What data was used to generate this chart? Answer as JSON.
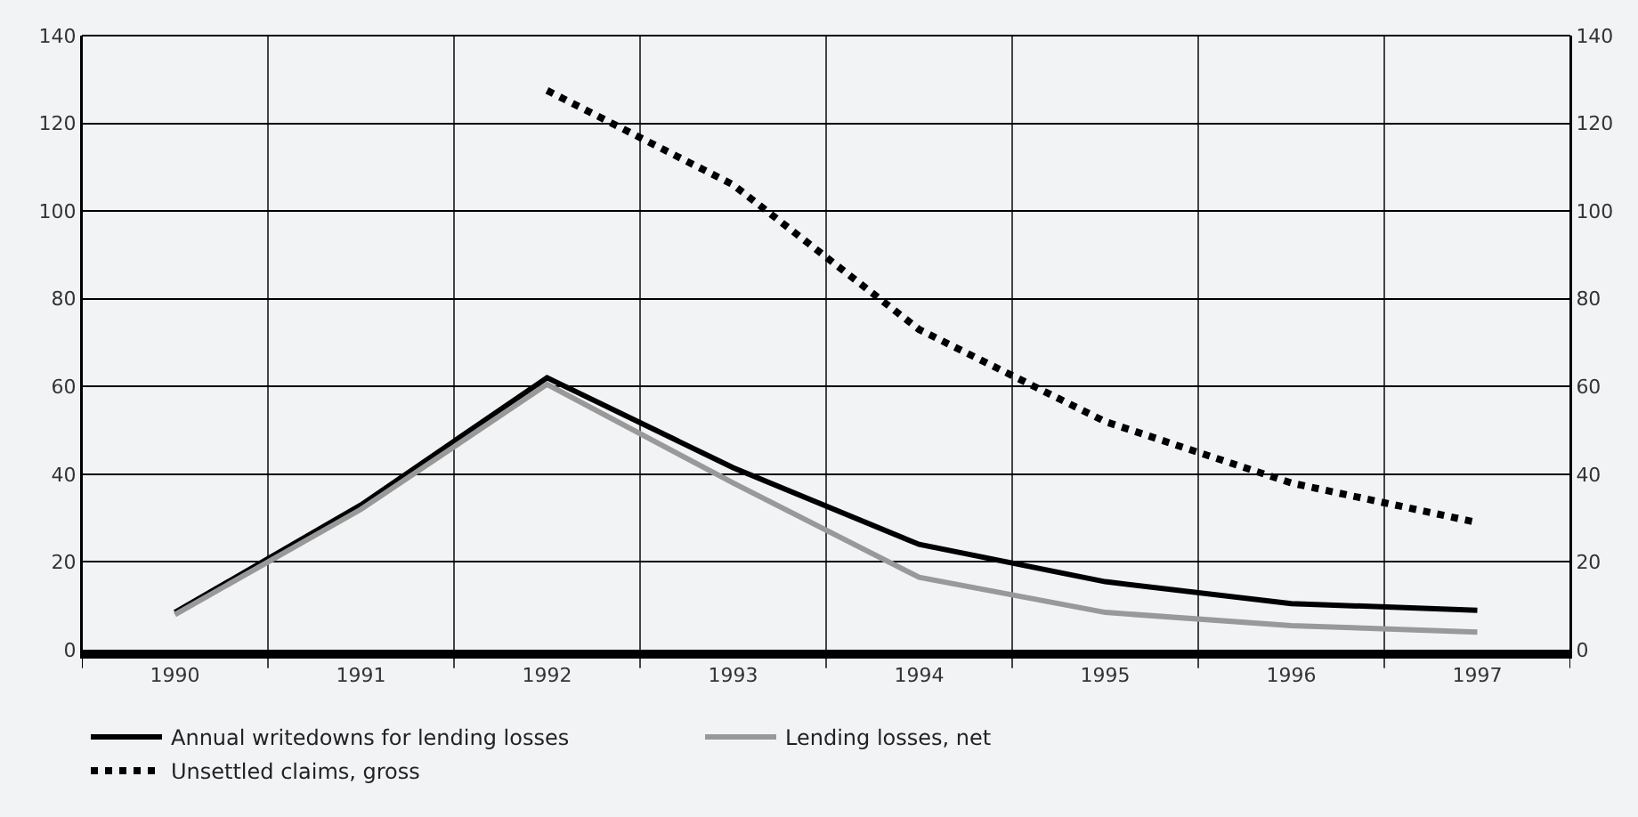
{
  "chart_data": {
    "type": "line",
    "categories": [
      "1990",
      "1991",
      "1992",
      "1993",
      "1994",
      "1995",
      "1996",
      "1997"
    ],
    "series": [
      {
        "name": "Annual writedowns for lending losses",
        "color": "#000000",
        "line_style": "solid",
        "values": [
          8.5,
          33,
          62,
          41.5,
          24,
          15.5,
          10.5,
          9
        ]
      },
      {
        "name": "Lending losses, net",
        "color": "#999999",
        "line_style": "solid",
        "values": [
          8,
          32,
          60.5,
          38,
          16.5,
          8.5,
          5.5,
          4
        ]
      },
      {
        "name": "Unsettled claims, gross",
        "color": "#000000",
        "line_style": "dotted",
        "values": [
          null,
          null,
          127.5,
          106,
          73,
          52,
          38,
          29
        ]
      }
    ],
    "ylim": [
      0,
      140
    ],
    "yticks": [
      0,
      20,
      40,
      60,
      80,
      100,
      120,
      140
    ],
    "y2lim": [
      0,
      140
    ],
    "y2ticks": [
      0,
      20,
      40,
      60,
      80,
      100,
      120,
      140
    ],
    "grid": true,
    "legend": "bottom",
    "marker": "none"
  }
}
